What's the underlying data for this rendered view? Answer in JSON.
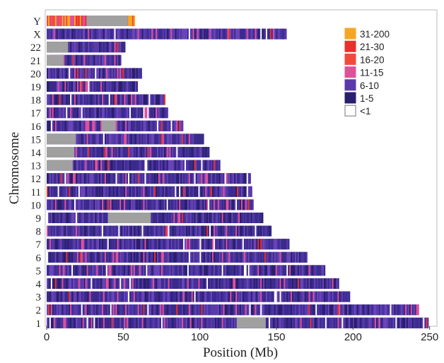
{
  "chart_data": {
    "type": "heatmap",
    "xlabel": "Position (Mb)",
    "ylabel": "Chromosome",
    "xlim": [
      0,
      252
    ],
    "x_ticks": [
      "0",
      "50",
      "100",
      "150",
      "200",
      "250"
    ],
    "x_tick_values": [
      0,
      50,
      100,
      150,
      200,
      250
    ],
    "grid": false,
    "legend_position": "top-right",
    "legend": [
      {
        "label": "31-200",
        "color": "#f5a623"
      },
      {
        "label": "21-30",
        "color": "#e8312a"
      },
      {
        "label": "16-20",
        "color": "#f04a3c"
      },
      {
        "label": "11-15",
        "color": "#e0509a"
      },
      {
        "label": "6-10",
        "color": "#5a3aaa"
      },
      {
        "label": "1-5",
        "color": "#2a1f6e"
      },
      {
        "label": "<1",
        "color": "#ffffff"
      }
    ],
    "no_data_color": "#a0a0a0",
    "chromosomes": [
      {
        "name": "Y",
        "length": 57,
        "gaps": [
          [
            26,
            53
          ]
        ],
        "dominant": "high"
      },
      {
        "name": "X",
        "length": 156,
        "gaps": []
      },
      {
        "name": "22",
        "length": 51,
        "gaps": [
          [
            0,
            14
          ]
        ]
      },
      {
        "name": "21",
        "length": 48,
        "gaps": [
          [
            0,
            11
          ]
        ]
      },
      {
        "name": "20",
        "length": 62,
        "gaps": []
      },
      {
        "name": "19",
        "length": 59,
        "gaps": []
      },
      {
        "name": "18",
        "length": 77,
        "gaps": []
      },
      {
        "name": "17",
        "length": 79,
        "gaps": []
      },
      {
        "name": "16",
        "length": 89,
        "gaps": [
          [
            36,
            45
          ]
        ]
      },
      {
        "name": "15",
        "length": 102,
        "gaps": [
          [
            0,
            19
          ]
        ]
      },
      {
        "name": "14",
        "length": 106,
        "gaps": [
          [
            0,
            18
          ]
        ]
      },
      {
        "name": "13",
        "length": 114,
        "gaps": [
          [
            0,
            17
          ]
        ]
      },
      {
        "name": "12",
        "length": 133,
        "gaps": []
      },
      {
        "name": "11",
        "length": 134,
        "gaps": []
      },
      {
        "name": "10",
        "length": 135,
        "gaps": []
      },
      {
        "name": "9",
        "length": 141,
        "gaps": [
          [
            40,
            68
          ]
        ]
      },
      {
        "name": "8",
        "length": 146,
        "gaps": []
      },
      {
        "name": "7",
        "length": 158,
        "gaps": []
      },
      {
        "name": "6",
        "length": 170,
        "gaps": []
      },
      {
        "name": "5",
        "length": 181,
        "gaps": []
      },
      {
        "name": "4",
        "length": 190,
        "gaps": []
      },
      {
        "name": "3",
        "length": 198,
        "gaps": []
      },
      {
        "name": "2",
        "length": 243,
        "gaps": []
      },
      {
        "name": "1",
        "length": 249,
        "gaps": [
          [
            124,
            143
          ]
        ]
      }
    ]
  }
}
